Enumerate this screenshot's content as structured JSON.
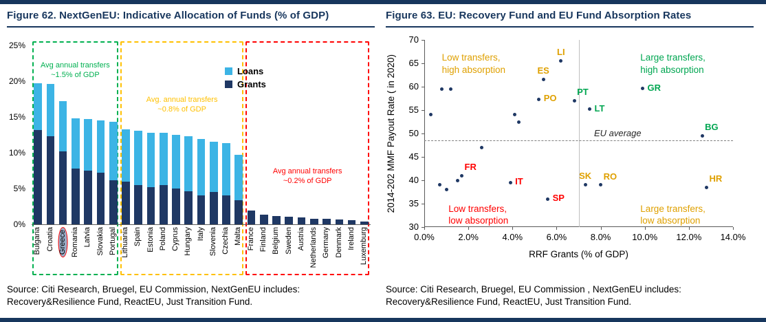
{
  "page": {
    "accent": "#17365D",
    "background": "#FFFFFF"
  },
  "figure62": {
    "title": "Figure 62. NextGenEU: Indicative Allocation of Funds (% of GDP)",
    "source": "Source: Citi Research, Bruegel, EU Commission, NextGenEU includes:\nRecovery&Resilience Fund, ReactEU, Just Transition Fund."
  },
  "figure63": {
    "title": "Figure 63. EU: Recovery Fund and EU Fund Absorption Rates",
    "source": "Source: Citi Research, Bruegel, EU Commission , NextGenEU includes:\nRecovery&Resilience Fund, ReactEU, Just Transition Fund."
  },
  "chart_data": [
    {
      "type": "bar",
      "stacked": true,
      "title": "Figure 62. NextGenEU: Indicative Allocation of Funds (% of GDP)",
      "categories": [
        "Bulgaria",
        "Croatia",
        "Greece",
        "Romania",
        "Latvia",
        "Slovakia",
        "Portugal",
        "Lithuania",
        "Spain",
        "Estonia",
        "Poland",
        "Cyprus",
        "Hungary",
        "Italy",
        "Slovenia",
        "Czechia",
        "Malta",
        "France",
        "Finland",
        "Belgium",
        "Sweden",
        "Austria",
        "Netherlands",
        "Germany",
        "Denmark",
        "Ireland",
        "Luxemburg"
      ],
      "series": [
        {
          "name": "Grants",
          "color": "#1F3864",
          "values": [
            13.2,
            12.3,
            10.2,
            7.8,
            7.5,
            7.2,
            6.2,
            6.0,
            5.5,
            5.2,
            5.5,
            5.0,
            4.6,
            4.0,
            4.5,
            4.0,
            3.4,
            1.9,
            1.3,
            1.2,
            1.1,
            1.0,
            0.8,
            0.8,
            0.7,
            0.6,
            0.4
          ]
        },
        {
          "name": "Loans",
          "color": "#3CB4E5",
          "values": [
            6.5,
            7.3,
            7.0,
            7.0,
            7.2,
            7.3,
            8.1,
            7.3,
            7.6,
            7.6,
            7.3,
            7.5,
            7.7,
            7.9,
            7.0,
            7.3,
            6.3,
            0,
            0,
            0,
            0,
            0,
            0,
            0,
            0,
            0,
            0
          ]
        }
      ],
      "ylim": [
        0,
        25
      ],
      "yticks": [
        0,
        5,
        10,
        15,
        20,
        25
      ],
      "ytick_suffix": "%",
      "highlight_category": "Greece",
      "legend_order": [
        "Loans",
        "Grants"
      ],
      "groups": [
        {
          "from": 0,
          "to": 6,
          "color": "#00B050",
          "label": "Avg annual transfers\n~1.5% of GDP"
        },
        {
          "from": 7,
          "to": 16,
          "color": "#FFC000",
          "label": "Avg. annual transfers\n~0.8% of GDP"
        },
        {
          "from": 17,
          "to": 26,
          "color": "#FF0000",
          "label": "Avg annual transfers\n~0.2% of GDP"
        }
      ]
    },
    {
      "type": "scatter",
      "title": "Figure 63. EU: Recovery Fund and EU Fund Absorption Rates",
      "xlabel": "RRF Grants (% of GDP)",
      "ylabel": "2014-202 MMF Payout Rate ( in 2020)",
      "xlim": [
        0,
        14
      ],
      "ylim": [
        30,
        70
      ],
      "xticks": [
        "0.0%",
        "2.0%",
        "4.0%",
        "6.0%",
        "8.0%",
        "10.0%",
        "12.0%",
        "14.0%"
      ],
      "yticks": [
        30,
        35,
        40,
        45,
        50,
        55,
        60,
        65,
        70
      ],
      "point_color": "#1F3864",
      "divider_x": 7,
      "avg_line": {
        "y": 48.5,
        "label": "EU average",
        "label_x": 7.7
      },
      "points": [
        {
          "x": 6.2,
          "y": 65.5,
          "label": "LI",
          "color": "#DFA000",
          "label_pos": "above"
        },
        {
          "x": 5.4,
          "y": 61.5,
          "label": "ES",
          "color": "#DFA000",
          "label_pos": "above"
        },
        {
          "x": 5.2,
          "y": 57.3,
          "label": "PO",
          "color": "#DFA000",
          "label_pos": "right"
        },
        {
          "x": 6.8,
          "y": 57.0,
          "label": "PT",
          "color": "#00A651",
          "label_pos": "above-right"
        },
        {
          "x": 7.5,
          "y": 55.2,
          "label": "LT",
          "color": "#00A651",
          "label_pos": "right"
        },
        {
          "x": 9.9,
          "y": 59.6,
          "label": "GR",
          "color": "#00A651",
          "label_pos": "right"
        },
        {
          "x": 12.6,
          "y": 49.5,
          "label": "BG",
          "color": "#00A651",
          "label_pos": "above-right"
        },
        {
          "x": 1.7,
          "y": 41.0,
          "label": "FR",
          "color": "#FF0000",
          "label_pos": "above-right"
        },
        {
          "x": 3.9,
          "y": 39.5,
          "label": "IT",
          "color": "#FF0000",
          "label_pos": "right"
        },
        {
          "x": 5.6,
          "y": 36.0,
          "label": "SP",
          "color": "#FF0000",
          "label_pos": "right"
        },
        {
          "x": 7.3,
          "y": 39.0,
          "label": "SK",
          "color": "#DFA000",
          "label_pos": "above"
        },
        {
          "x": 8.0,
          "y": 39.0,
          "label": "RO",
          "color": "#DFA000",
          "label_pos": "above-right"
        },
        {
          "x": 12.8,
          "y": 38.5,
          "label": "HR",
          "color": "#DFA000",
          "label_pos": "above-right"
        },
        {
          "x": 0.3,
          "y": 54.0
        },
        {
          "x": 0.8,
          "y": 59.5
        },
        {
          "x": 1.2,
          "y": 59.5
        },
        {
          "x": 2.6,
          "y": 47.0
        },
        {
          "x": 4.1,
          "y": 54.0
        },
        {
          "x": 4.3,
          "y": 52.5
        },
        {
          "x": 0.7,
          "y": 39.0
        },
        {
          "x": 1.0,
          "y": 38.0
        },
        {
          "x": 1.5,
          "y": 40.0
        }
      ],
      "quadrants": [
        {
          "text": "Low transfers,\nhigh absorption",
          "x": 0.8,
          "y": 67.5,
          "color": "#DFA000"
        },
        {
          "text": "Large transfers,\nhigh absorption",
          "x": 9.8,
          "y": 67.5,
          "color": "#00A651"
        },
        {
          "text": "Low transfers,\nlow absorption",
          "x": 1.1,
          "y": 35.2,
          "color": "#FF0000"
        },
        {
          "text": "Large transfers,\nlow absorption",
          "x": 9.8,
          "y": 35.2,
          "color": "#DFA000"
        }
      ]
    }
  ]
}
